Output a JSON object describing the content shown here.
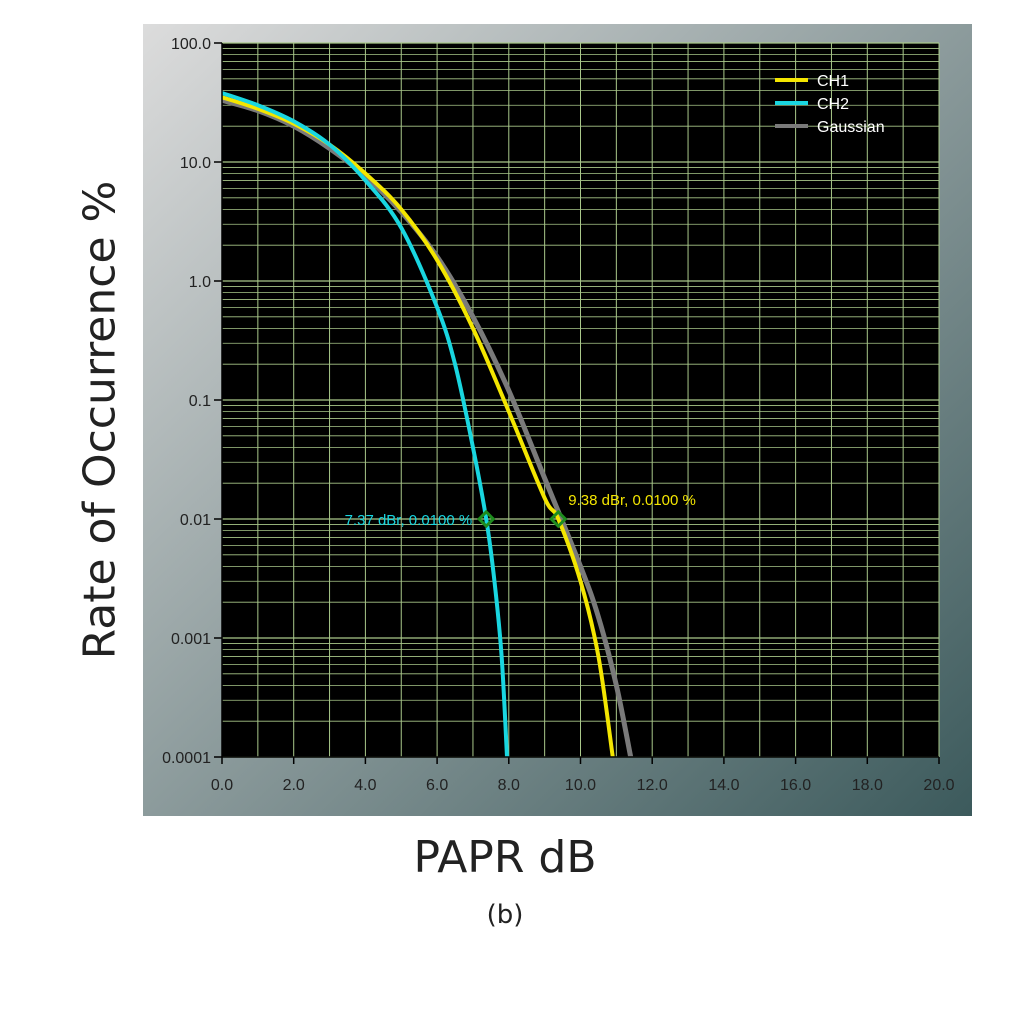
{
  "chart_data": {
    "type": "line",
    "xlabel": "PAPR dB",
    "ylabel": "Rate of Occurrence %",
    "caption": "(b)",
    "xlim": [
      0,
      20
    ],
    "ylim": [
      0.0001,
      100
    ],
    "yscale": "log",
    "grid": true,
    "legend_position": "top-right",
    "x_ticks": [
      "0.0",
      "2.0",
      "4.0",
      "6.0",
      "8.0",
      "10.0",
      "12.0",
      "14.0",
      "16.0",
      "18.0",
      "20.0"
    ],
    "y_ticks": [
      "100.0",
      "10.0",
      "1.0",
      "0.1",
      "0.01",
      "0.001",
      "0.0001"
    ],
    "colors": {
      "panel_light": "#dcdcdc",
      "panel_dark": "#3c5a5c",
      "plot_bg": "#000000",
      "grid": "#a9c88a",
      "ch1": "#f4e600",
      "ch2": "#19d6e0",
      "gaussian": "#7a7a7a",
      "marker": "#1e8c1e"
    },
    "series": [
      {
        "name": "CH1",
        "color": "#f4e600",
        "x": [
          0,
          1,
          2,
          3,
          4,
          5,
          6,
          7,
          8,
          9,
          9.38,
          10,
          10.5,
          10.9
        ],
        "y": [
          35,
          28,
          21,
          14,
          8,
          4,
          1.5,
          0.4,
          0.08,
          0.015,
          0.01,
          0.003,
          0.0007,
          0.0001
        ]
      },
      {
        "name": "CH2",
        "color": "#19d6e0",
        "x": [
          0,
          1,
          2,
          3,
          4,
          5,
          6,
          6.5,
          7,
          7.37,
          7.6,
          7.8,
          7.95
        ],
        "y": [
          38,
          30,
          22,
          14,
          7,
          2.8,
          0.6,
          0.2,
          0.04,
          0.01,
          0.003,
          0.0007,
          0.0001
        ]
      },
      {
        "name": "Gaussian",
        "color": "#7a7a7a",
        "x": [
          0,
          1,
          2,
          3,
          4,
          5,
          6,
          7,
          8,
          9,
          10,
          10.5,
          11,
          11.4
        ],
        "y": [
          33,
          27,
          20,
          13,
          7.6,
          3.8,
          1.6,
          0.5,
          0.12,
          0.022,
          0.004,
          0.0015,
          0.0004,
          0.0001
        ]
      }
    ],
    "annotations": [
      {
        "text": "7.37 dBr, 0.0100 %",
        "x": 7.37,
        "y": 0.01,
        "color": "#19d6e0",
        "anchor": "end"
      },
      {
        "text": "9.38 dBr, 0.0100 %",
        "x": 9.38,
        "y": 0.01,
        "color": "#f4e600",
        "anchor": "start"
      }
    ]
  }
}
